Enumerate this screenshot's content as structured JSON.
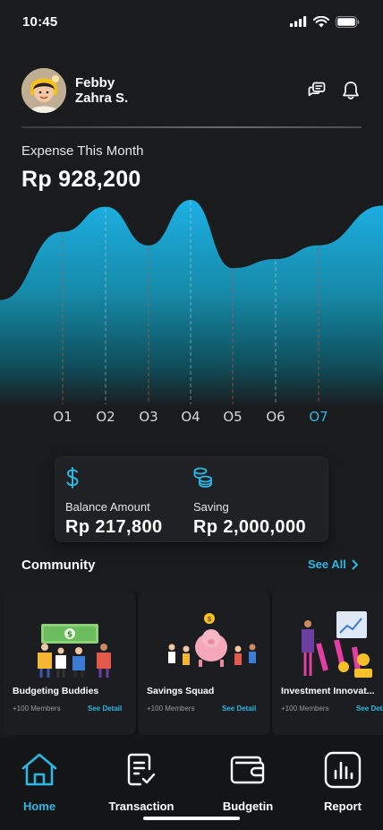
{
  "status_bar": {
    "time": "10:45"
  },
  "user": {
    "first_name": "Febby",
    "last_name": "Zahra S."
  },
  "expense": {
    "label": "Expense This Month",
    "amount": "Rp  928,200"
  },
  "chart_data": {
    "type": "area",
    "x": [
      "O1",
      "O2",
      "O3",
      "O4",
      "O5",
      "O6",
      "O7"
    ],
    "active_x": "O7",
    "values": [
      72,
      94,
      60,
      100,
      40,
      48,
      60
    ],
    "title": "",
    "xlabel": "",
    "ylabel": ""
  },
  "balance": {
    "amount_label": "Balance Amount",
    "amount_value": "Rp  217,800",
    "saving_label": "Saving",
    "saving_value": "Rp  2,000,000"
  },
  "community": {
    "title": "Community",
    "see_all": "See All",
    "cards": [
      {
        "title": "Budgeting Buddies",
        "members": "+100 Members",
        "detail": "See Detail"
      },
      {
        "title": "Savings Squad",
        "members": "+100 Members",
        "detail": "See Detail"
      },
      {
        "title": "Investment Innovat...",
        "members": "+100 Members",
        "detail": "See Detail"
      }
    ]
  },
  "nav": {
    "home": "Home",
    "transaction": "Transaction",
    "budgetin": "Budgetin",
    "report": "Report"
  },
  "colors": {
    "accent": "#2bb8e3",
    "background": "#1a1b1d"
  }
}
